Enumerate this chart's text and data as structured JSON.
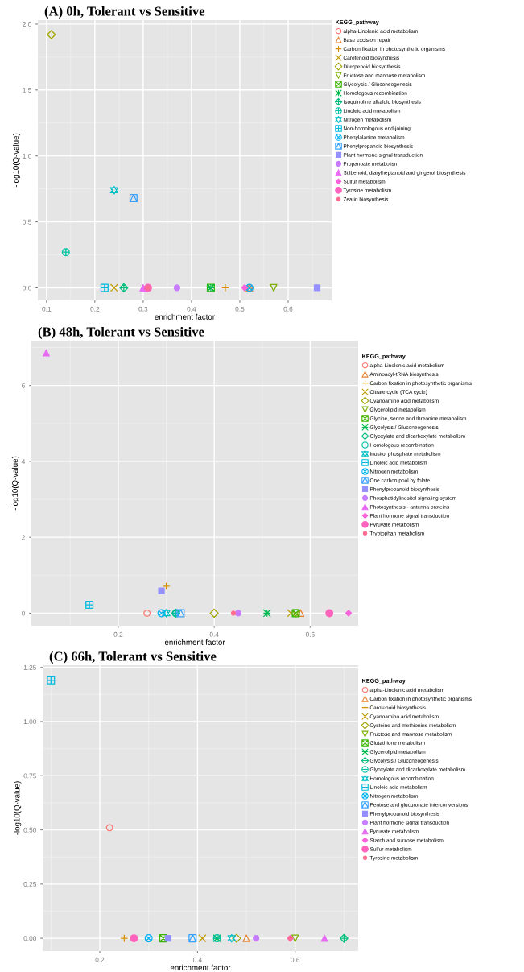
{
  "chart_data": [
    {
      "type": "scatter",
      "title": "(A) 0h, Tolerant vs Sensitive",
      "xlabel": "enrichment factor",
      "ylabel": "-log10(Q-value)",
      "legend_title": "KEGG_pathway",
      "legend": "right",
      "grid": true,
      "xlim": [
        0.082,
        0.69
      ],
      "ylim": [
        -0.095,
        2.03
      ],
      "xticks": [
        0.1,
        0.2,
        0.3,
        0.4,
        0.5,
        0.6
      ],
      "yticks": [
        {
          "value": 0,
          "label": "0.0"
        },
        0.5,
        {
          "value": 1,
          "label": "1.0"
        },
        1.5,
        {
          "value": 2,
          "label": "2.0"
        }
      ],
      "series": [
        {
          "name": "alpha-Linolenic acid metabolism",
          "color": "#f8766d",
          "x": [
            0.52
          ],
          "values": [
            0
          ]
        },
        {
          "name": "Base excision repair",
          "color": "#ea8331",
          "x": [
            0.52
          ],
          "values": [
            0
          ]
        },
        {
          "name": "Carbon fixation in photosynthetic organisms",
          "color": "#d89000",
          "x": [
            0.47
          ],
          "values": [
            0
          ]
        },
        {
          "name": "Carotenoid biosynthesis",
          "color": "#c09b00",
          "x": [
            0.24
          ],
          "values": [
            0
          ]
        },
        {
          "name": "Diterpenoid biosynthesis",
          "color": "#a3a500",
          "x": [
            0.11
          ],
          "values": [
            1.92
          ]
        },
        {
          "name": "Fructose and mannose metabolism",
          "color": "#7cae00",
          "x": [
            0.57
          ],
          "values": [
            0
          ]
        },
        {
          "name": "Glycolysis / Gluconeogenesis",
          "color": "#39b600",
          "x": [
            0.44
          ],
          "values": [
            0
          ]
        },
        {
          "name": "Homologous recombination",
          "color": "#00bb4e",
          "x": [
            0.44
          ],
          "values": [
            0
          ]
        },
        {
          "name": "Isoquinoline alkaloid biosynthesis",
          "color": "#00bf7d",
          "x": [
            0.26
          ],
          "values": [
            0
          ]
        },
        {
          "name": "Linoleic acid metabolism",
          "color": "#00c1a3",
          "x": [
            0.14
          ],
          "values": [
            0.27
          ]
        },
        {
          "name": "Nitrogen metabolism",
          "color": "#00bfc4",
          "x": [
            0.24
          ],
          "values": [
            0.74
          ]
        },
        {
          "name": "Non-homologous end-joining",
          "color": "#00bae0",
          "x": [
            0.22
          ],
          "values": [
            0
          ]
        },
        {
          "name": "Phenylalanine metabolism",
          "color": "#00b0f6",
          "x": [
            0.52
          ],
          "values": [
            0
          ]
        },
        {
          "name": "Phenylpropanoid biosynthesis",
          "color": "#35a2ff",
          "x": [
            0.28
          ],
          "values": [
            0.68
          ]
        },
        {
          "name": "Plant hormone signal transduction",
          "color": "#9590ff",
          "x": [
            0.66
          ],
          "values": [
            0
          ]
        },
        {
          "name": "Propanoate metabolism",
          "color": "#c77cff",
          "x": [
            0.37
          ],
          "values": [
            0
          ]
        },
        {
          "name": "Stilbenoid, diarylheptanoid and gingerol biosynthesis",
          "color": "#e76bf3",
          "x": [
            0.3
          ],
          "values": [
            0
          ]
        },
        {
          "name": "Sulfur metabolism",
          "color": "#fa62db",
          "x": [
            0.51
          ],
          "values": [
            0
          ]
        },
        {
          "name": "Tyrosine metabolism",
          "color": "#ff62bc",
          "x": [
            0.31
          ],
          "values": [
            0
          ]
        },
        {
          "name": "Zeatin biosynthesis",
          "color": "#ff6c91",
          "x": [
            0.31
          ],
          "values": [
            0
          ]
        }
      ]
    },
    {
      "type": "scatter",
      "title": "(B) 48h, Tolerant vs Sensitive",
      "xlabel": "enrichment factor",
      "ylabel": "-log10(Q-value)",
      "legend_title": "KEGG_pathway",
      "legend": "right",
      "grid": true,
      "xlim": [
        0.019,
        0.7
      ],
      "ylim": [
        -0.33,
        7.18
      ],
      "xticks": [
        0.2,
        0.4,
        0.6
      ],
      "yticks": [
        0,
        2,
        4,
        6
      ],
      "series": [
        {
          "name": "alpha-Linolenic acid metabolism",
          "color": "#f8766d",
          "x": [
            0.26
          ],
          "values": [
            0
          ]
        },
        {
          "name": "Aminoacyl-tRNA biosynthesis",
          "color": "#ea8331",
          "x": [
            0.58
          ],
          "values": [
            0
          ]
        },
        {
          "name": "Carbon fixation in photosynthetic organisms",
          "color": "#d89000",
          "x": [
            0.3
          ],
          "values": [
            0.71
          ]
        },
        {
          "name": "Citrate cycle (TCA cycle)",
          "color": "#c09b00",
          "x": [
            0.56
          ],
          "values": [
            0
          ]
        },
        {
          "name": "Cyanoamino acid metabolism",
          "color": "#a3a500",
          "x": [
            0.4
          ],
          "values": [
            0
          ]
        },
        {
          "name": "Glycerolipid metabolism",
          "color": "#7cae00",
          "x": [
            0.57
          ],
          "values": [
            0
          ]
        },
        {
          "name": "Glycine, serine and threonine metabolism",
          "color": "#39b600",
          "x": [
            0.57
          ],
          "values": [
            0
          ]
        },
        {
          "name": "Glycolysis / Gluconeogenesis",
          "color": "#00bb4e",
          "x": [
            0.51
          ],
          "values": [
            0
          ]
        },
        {
          "name": "Glyoxylate and dicarboxylate metabolism",
          "color": "#00bf7d",
          "x": [
            0.32
          ],
          "values": [
            0
          ]
        },
        {
          "name": "Homologous recombination",
          "color": "#00c1a3",
          "x": [
            0.32
          ],
          "values": [
            0
          ]
        },
        {
          "name": "Inositol phosphate metabolism",
          "color": "#00bfc4",
          "x": [
            0.3
          ],
          "values": [
            0
          ]
        },
        {
          "name": "Linoleic acid metabolism",
          "color": "#00bae0",
          "x": [
            0.14
          ],
          "values": [
            0.22
          ]
        },
        {
          "name": "Nitrogen metabolism",
          "color": "#00b0f6",
          "x": [
            0.29
          ],
          "values": [
            0
          ]
        },
        {
          "name": "One carbon pool by folate",
          "color": "#35a2ff",
          "x": [
            0.33
          ],
          "values": [
            0
          ]
        },
        {
          "name": "Phenylpropanoid biosynthesis",
          "color": "#9590ff",
          "x": [
            0.29
          ],
          "values": [
            0.59
          ]
        },
        {
          "name": "Phosphatidylinositol signaling system",
          "color": "#c77cff",
          "x": [
            0.45
          ],
          "values": [
            0
          ]
        },
        {
          "name": "Photosynthesis - antenna proteins",
          "color": "#e76bf3",
          "x": [
            0.05
          ],
          "values": [
            6.86
          ]
        },
        {
          "name": "Plant hormone signal transduction",
          "color": "#fa62db",
          "x": [
            0.68
          ],
          "values": [
            0
          ]
        },
        {
          "name": "Pyruvate metabolism",
          "color": "#ff62bc",
          "x": [
            0.64
          ],
          "values": [
            0
          ]
        },
        {
          "name": "Tryptophan metabolism",
          "color": "#ff6c91",
          "x": [
            0.44
          ],
          "values": [
            0
          ]
        }
      ]
    },
    {
      "type": "scatter",
      "title": "(C) 66h, Tolerant vs Sensitive",
      "xlabel": "enrichment factor",
      "ylabel": "-log10(Q-value)",
      "legend_title": "KEGG_pathway",
      "legend": "right",
      "grid": true,
      "xlim": [
        0.083,
        0.729
      ],
      "ylim": [
        -0.059,
        1.26
      ],
      "xticks": [
        0.2,
        0.4,
        0.6
      ],
      "yticks": [
        {
          "value": 0,
          "label": "0.00"
        },
        0.25,
        {
          "value": 0.5,
          "label": "0.50"
        },
        0.75,
        {
          "value": 1,
          "label": "1.00"
        },
        1.25
      ],
      "series": [
        {
          "name": "alpha-Linolenic acid metabolism",
          "color": "#f8766d",
          "x": [
            0.22
          ],
          "values": [
            0.51
          ]
        },
        {
          "name": "Carbon fixation in photosynthetic organisms",
          "color": "#ea8331",
          "x": [
            0.5
          ],
          "values": [
            0
          ]
        },
        {
          "name": "Carotenoid biosynthesis",
          "color": "#d89000",
          "x": [
            0.25
          ],
          "values": [
            0
          ]
        },
        {
          "name": "Cyanoamino acid metabolism",
          "color": "#c09b00",
          "x": [
            0.41
          ],
          "values": [
            0
          ]
        },
        {
          "name": "Cysteine and methionine metabolism",
          "color": "#a3a500",
          "x": [
            0.48
          ],
          "values": [
            0
          ]
        },
        {
          "name": "Fructose and mannose metabolism",
          "color": "#7cae00",
          "x": [
            0.6
          ],
          "values": [
            0
          ]
        },
        {
          "name": "Glutathione metabolism",
          "color": "#39b600",
          "x": [
            0.33
          ],
          "values": [
            0
          ]
        },
        {
          "name": "Glycerolipid metabolism",
          "color": "#00bb4e",
          "x": [
            0.44
          ],
          "values": [
            0
          ]
        },
        {
          "name": "Glycolysis / Gluconeogenesis",
          "color": "#00bf7d",
          "x": [
            0.7
          ],
          "values": [
            0
          ]
        },
        {
          "name": "Glyoxylate and dicarboxylate metabolism",
          "color": "#00c1a3",
          "x": [
            0.44
          ],
          "values": [
            0
          ]
        },
        {
          "name": "Homologous recombination",
          "color": "#00bfc4",
          "x": [
            0.47
          ],
          "values": [
            0
          ]
        },
        {
          "name": "Linoleic acid metabolism",
          "color": "#00bae0",
          "x": [
            0.1
          ],
          "values": [
            1.19
          ]
        },
        {
          "name": "Nitrogen metabolism",
          "color": "#00b0f6",
          "x": [
            0.3
          ],
          "values": [
            0
          ]
        },
        {
          "name": "Pentose and glucuronate interconversions",
          "color": "#35a2ff",
          "x": [
            0.39
          ],
          "values": [
            0
          ]
        },
        {
          "name": "Phenylpropanoid biosynthesis",
          "color": "#9590ff",
          "x": [
            0.34
          ],
          "values": [
            0
          ]
        },
        {
          "name": "Plant hormone signal transduction",
          "color": "#c77cff",
          "x": [
            0.52
          ],
          "values": [
            0
          ]
        },
        {
          "name": "Pyruvate metabolism",
          "color": "#e76bf3",
          "x": [
            0.66
          ],
          "values": [
            0
          ]
        },
        {
          "name": "Starch and sucrose metabolism",
          "color": "#fa62db",
          "x": [
            0.59
          ],
          "values": [
            0
          ]
        },
        {
          "name": "Sulfur metabolism",
          "color": "#ff62bc",
          "x": [
            0.27
          ],
          "values": [
            0
          ]
        },
        {
          "name": "Tyrosine metabolism",
          "color": "#ff6c91",
          "x": [
            0.59
          ],
          "values": [
            0
          ]
        }
      ]
    }
  ]
}
